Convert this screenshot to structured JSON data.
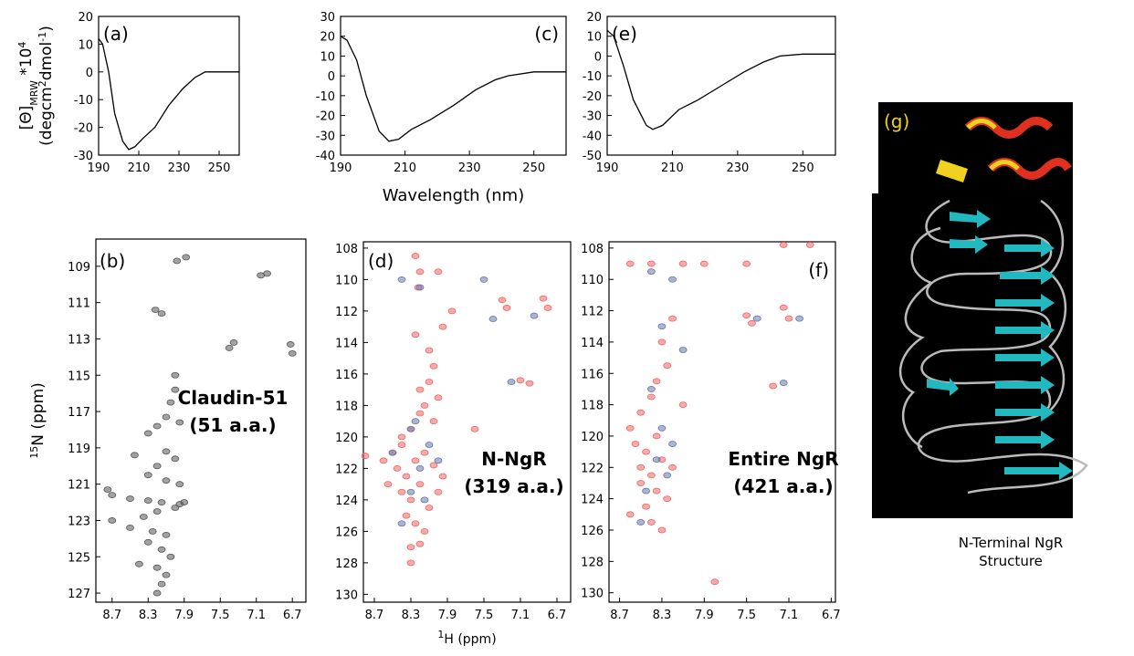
{
  "chart_data": [
    {
      "type": "line",
      "label": "(a)",
      "ylabel": [
        [
          "[Θ]",
          "MRW",
          " *10",
          "4"
        ],
        [
          "(degcm",
          "2",
          "dmol",
          "-1",
          ")"
        ]
      ],
      "x": [
        190,
        192,
        195,
        198,
        202,
        205,
        208,
        212,
        218,
        225,
        232,
        238,
        243,
        250,
        260
      ],
      "values": [
        12,
        10,
        0,
        -15,
        -25,
        -28,
        -27,
        -24,
        -20,
        -12,
        -6,
        -2,
        0,
        0,
        0
      ],
      "color": "#000000",
      "xlim": [
        190,
        260
      ],
      "xticks": [
        190,
        210,
        230,
        250
      ],
      "ylim": [
        -30,
        20
      ],
      "yticks": [
        -30,
        -20,
        -10,
        0,
        10,
        20
      ]
    },
    {
      "type": "scatter",
      "label": "(b)",
      "ylabel": [
        [
          "15",
          "N (ppm)"
        ]
      ],
      "annotations": [
        "Claudin-51",
        "(51 a.a.)"
      ],
      "xlim": [
        8.88,
        6.55
      ],
      "xticks": [
        8.7,
        8.3,
        7.9,
        7.5,
        7.1,
        6.7
      ],
      "ylim": [
        127.5,
        107.5
      ],
      "yticks": [
        109,
        111,
        113,
        115,
        117,
        119,
        121,
        123,
        125,
        127
      ],
      "series": [
        {
          "color": "#555555",
          "x": [
            7.98,
            7.88,
            7.05,
            6.98,
            8.22,
            8.15,
            7.4,
            7.35,
            6.7,
            6.72,
            8.0,
            8.0,
            8.05,
            8.1,
            7.95,
            8.2,
            8.3,
            8.45,
            8.1,
            8.0,
            8.2,
            8.3,
            8.1,
            7.95,
            8.75,
            8.7,
            8.5,
            8.3,
            8.15,
            7.9,
            8.0,
            8.2,
            8.35,
            8.7,
            8.5,
            8.25,
            8.1,
            8.3,
            8.15,
            8.05,
            8.4,
            8.2,
            8.1,
            8.15,
            8.2,
            7.95
          ],
          "values": [
            108.7,
            108.5,
            109.5,
            109.4,
            111.4,
            111.6,
            113.5,
            113.2,
            113.8,
            113.3,
            115.0,
            115.8,
            116.5,
            117.3,
            117.6,
            117.8,
            118.2,
            119.4,
            119.2,
            119.6,
            120.0,
            120.5,
            120.8,
            121.0,
            121.3,
            121.6,
            121.8,
            121.9,
            122.0,
            122.0,
            122.3,
            122.5,
            122.8,
            123.0,
            123.4,
            123.6,
            123.8,
            124.2,
            124.6,
            125.0,
            125.4,
            125.6,
            126.0,
            126.5,
            127.0,
            122.1
          ]
        }
      ]
    },
    {
      "type": "line",
      "label": "(c)",
      "xlabel": [
        "Wavelength (nm)"
      ],
      "x": [
        190,
        192,
        195,
        198,
        202,
        205,
        208,
        212,
        218,
        225,
        232,
        238,
        242,
        250,
        260
      ],
      "values": [
        20,
        18,
        8,
        -10,
        -28,
        -33,
        -32,
        -27,
        -22,
        -15,
        -7,
        -2,
        0,
        2,
        2
      ],
      "color": "#000000",
      "xlim": [
        190,
        260
      ],
      "xticks": [
        190,
        210,
        230,
        250
      ],
      "ylim": [
        -40,
        30
      ],
      "yticks": [
        -40,
        -30,
        -20,
        -10,
        0,
        10,
        20,
        30
      ]
    },
    {
      "type": "scatter",
      "label": "(d)",
      "xlabel": [
        "1",
        "H (ppm)"
      ],
      "annotations": [
        "N-NgR",
        "(319 a.a.)"
      ],
      "xlim": [
        8.82,
        6.55
      ],
      "xticks": [
        8.7,
        8.3,
        7.9,
        7.5,
        7.1,
        6.7
      ],
      "ylim": [
        130.5,
        107.6
      ],
      "yticks": [
        108,
        110,
        112,
        114,
        116,
        118,
        120,
        122,
        124,
        126,
        128,
        130
      ],
      "series": [
        {
          "color": "#ee6666",
          "x": [
            8.25,
            8.2,
            8.22,
            8.0,
            7.85,
            8.1,
            8.05,
            8.1,
            8.0,
            8.15,
            8.05,
            8.2,
            8.3,
            8.4,
            8.5,
            8.6,
            8.45,
            8.35,
            8.25,
            8.15,
            8.05,
            7.95,
            8.55,
            8.4,
            8.3,
            8.2,
            8.1,
            8.0,
            8.35,
            8.25,
            8.15,
            8.4,
            8.3,
            8.2,
            8.3,
            8.2,
            8.25,
            7.95,
            7.3,
            7.25,
            6.85,
            6.8,
            7.0,
            7.1,
            8.8,
            7.6
          ],
          "values": [
            108.5,
            109.5,
            110.5,
            109.5,
            112.0,
            114.5,
            115.5,
            116.5,
            117.5,
            118.0,
            119.0,
            118.5,
            119.5,
            120.5,
            121.0,
            121.5,
            122.0,
            122.5,
            121.5,
            121.0,
            121.8,
            122.5,
            123.0,
            123.5,
            124.0,
            123.0,
            124.5,
            123.5,
            125.0,
            125.5,
            126.0,
            120.0,
            127.0,
            126.8,
            128.0,
            117.0,
            113.5,
            113.0,
            111.3,
            111.8,
            111.2,
            111.8,
            116.6,
            116.4,
            121.2,
            119.5
          ]
        },
        {
          "color": "#6677aa",
          "x": [
            8.4,
            8.2,
            7.4,
            6.95,
            7.2,
            8.3,
            8.1,
            8.5,
            8.2,
            8.0,
            8.3,
            8.15,
            8.4,
            8.25,
            7.5
          ],
          "values": [
            110.0,
            110.5,
            112.5,
            112.3,
            116.5,
            119.5,
            120.5,
            121.0,
            122.0,
            121.5,
            123.5,
            124.0,
            125.5,
            119.0,
            110.0
          ]
        }
      ]
    },
    {
      "type": "line",
      "label": "(e)",
      "x": [
        190,
        192,
        195,
        198,
        202,
        204,
        207,
        212,
        218,
        225,
        232,
        238,
        243,
        250,
        260
      ],
      "values": [
        13,
        10,
        -5,
        -22,
        -35,
        -37,
        -35,
        -27,
        -22,
        -15,
        -8,
        -3,
        0,
        1,
        1
      ],
      "color": "#000000",
      "xlim": [
        190,
        260
      ],
      "xticks": [
        190,
        210,
        230,
        250
      ],
      "ylim": [
        -50,
        20
      ],
      "yticks": [
        -50,
        -40,
        -30,
        -20,
        -10,
        0,
        10,
        20
      ]
    },
    {
      "type": "scatter",
      "label": "(f)",
      "annotations": [
        "Entire NgR",
        "(421 a.a.)"
      ],
      "xlim": [
        8.8,
        6.66
      ],
      "xticks": [
        8.7,
        8.3,
        7.9,
        7.5,
        7.1,
        6.7
      ],
      "ylim": [
        130.6,
        107.6
      ],
      "yticks": [
        108,
        110,
        112,
        114,
        116,
        118,
        120,
        122,
        124,
        126,
        128,
        130
      ],
      "series": [
        {
          "color": "#ee6666",
          "x": [
            8.6,
            8.4,
            8.1,
            7.9,
            7.5,
            7.15,
            6.9,
            8.2,
            8.3,
            8.25,
            8.35,
            8.4,
            8.5,
            8.6,
            8.55,
            8.45,
            8.3,
            8.2,
            8.4,
            8.5,
            8.35,
            8.25,
            8.45,
            8.6,
            8.4,
            8.3,
            8.5,
            8.35,
            7.5,
            7.45,
            7.15,
            7.1,
            7.25,
            8.1,
            7.8
          ],
          "values": [
            109.0,
            109.0,
            109.0,
            109.0,
            109.0,
            107.8,
            107.8,
            112.5,
            114.0,
            115.5,
            116.5,
            117.5,
            118.5,
            119.5,
            120.5,
            121.0,
            121.5,
            122.0,
            122.5,
            123.0,
            123.5,
            124.0,
            124.5,
            125.0,
            125.5,
            126.0,
            122.0,
            120.0,
            112.3,
            112.8,
            111.8,
            112.5,
            116.8,
            118.0,
            129.3
          ]
        },
        {
          "color": "#6677aa",
          "x": [
            8.4,
            8.2,
            8.3,
            8.1,
            8.4,
            8.3,
            8.2,
            8.35,
            8.25,
            8.45,
            7.4,
            7.0,
            7.15,
            8.5
          ],
          "values": [
            109.5,
            110.0,
            113.0,
            114.5,
            117.0,
            119.5,
            120.5,
            121.5,
            122.5,
            123.5,
            112.5,
            112.5,
            116.6,
            125.5
          ]
        }
      ]
    }
  ],
  "structure": {
    "label": "(g)",
    "caption": [
      "N-Terminal NgR",
      "Structure"
    ]
  }
}
